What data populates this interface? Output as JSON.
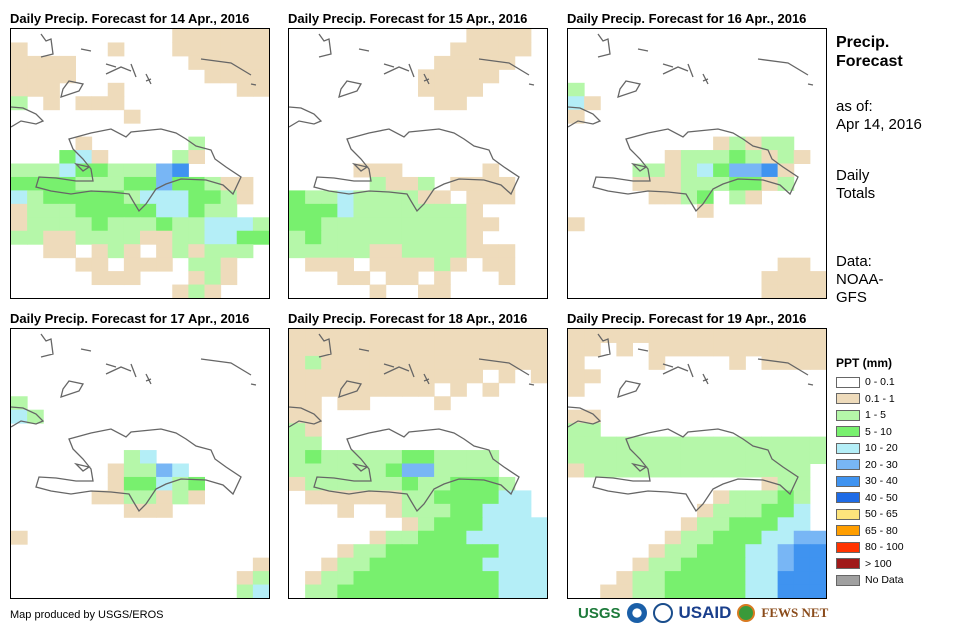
{
  "panels": [
    {
      "title": "Daily Precip. Forecast for 14 Apr., 2016",
      "grid": [
        "0000000000111111",
        "1000001000111111",
        "1111000000011111",
        "1111000000001111",
        "1110001000000011",
        "2010111000000000",
        "0000000100000000",
        "0000000000000000",
        "0000100000020000",
        "0003410000210000",
        "2224332225600000",
        "3333222335332110",
        "4233333244433210",
        "1222333334432200",
        "1222232223224442",
        "2211222211224433",
        "0011012101212220",
        "0000110111022100",
        "0000011100012100",
        "0000000000121000"
      ]
    },
    {
      "title": "Daily Precip. Forecast for 15 Apr., 2016",
      "grid": [
        "0000000000011110",
        "0000000000111110",
        "0000000001111100",
        "0000000011111000",
        "0000000011110000",
        "0000000001100000",
        "0000000000000000",
        "0000000000000000",
        "0000000000000000",
        "0000000000000000",
        "0000111000001000",
        "0000021120111100",
        "3224222211011100",
        "3334222222210000",
        "3322222222211000",
        "2322222222210000",
        "2222211222211100",
        "0111011112101100",
        "0001101101000100",
        "0000010011000000"
      ]
    },
    {
      "title": "Daily Precip. Forecast for 16 Apr., 2016",
      "grid": [
        "0000000000000000",
        "0000000000000000",
        "0000000000000000",
        "0000000000000000",
        "2000000000000000",
        "4100000000000000",
        "1000000000000000",
        "0000000000000000",
        "0000000001212200",
        "0000001222321210",
        "0000221243556100",
        "0000111222331200",
        "0000011230210000",
        "0000000010000000",
        "1000000000000000",
        "0000000000000000",
        "0000000000000000",
        "0000000000000110",
        "0000000000001111",
        "0000000000001111"
      ]
    },
    {
      "title": "Daily Precip. Forecast for 17 Apr., 2016",
      "grid": [
        "0000000000000000",
        "0000000000000000",
        "0000000000000000",
        "0000000000000000",
        "0000000000000000",
        "2000000000000000",
        "4200000000000000",
        "0000000000000000",
        "0000000000000000",
        "0000000240000000",
        "0000001225400000",
        "0000001334230000",
        "0000011221210000",
        "0000000111000000",
        "0000000000000000",
        "1000000000000000",
        "0000000000000000",
        "0000000000000001",
        "0000000000000012",
        "0000000000000024"
      ]
    },
    {
      "title": "Daily Precip. Forecast for 18 Apr., 2016",
      "grid": [
        "1111111111111111",
        "1111111111111111",
        "1211111111111111",
        "1111111111110101",
        "1111111110101000",
        "1101100001000000",
        "1100000000000000",
        "2100000000000000",
        "2200000000000000",
        "2322222332222000",
        "2222223552222000",
        "1222222322333200",
        "0111111223333440",
        "0001001222334440",
        "0000000123334444",
        "0000012233344444",
        "0001223333333444",
        "0012233333334444",
        "0122333333333444",
        "0223333333333444"
      ]
    },
    {
      "title": "Daily Precip. Forecast for 19 Apr., 2016",
      "grid": [
        "1111111111111111",
        "1101011111111111",
        "1000010000101111",
        "1100000000000000",
        "1000000000000000",
        "0000000000000000",
        "1100000000000000",
        "2200000000000000",
        "2222222222222222",
        "2222222222222222",
        "1222222222222220",
        "0000000000001220",
        "0000000001222320",
        "0000000012223340",
        "0000000122333440",
        "0000001223334455",
        "0000012233344566",
        "0000122333344566",
        "0001223333344666",
        "0011223333344666"
      ]
    }
  ],
  "side": {
    "title_line1": "Precip.",
    "title_line2": "Forecast",
    "as_of_label": "as of:",
    "as_of_date": "Apr 14, 2016",
    "totals_line1": "Daily",
    "totals_line2": "Totals",
    "data_label": "Data:",
    "data_line1": "NOAA-",
    "data_line2": "GFS"
  },
  "legend": {
    "title": "PPT (mm)",
    "items": [
      {
        "label": "0 - 0.1",
        "color": "#ffffff"
      },
      {
        "label": "0.1 - 1",
        "color": "#eedbbb"
      },
      {
        "label": "1 - 5",
        "color": "#b5f7a9"
      },
      {
        "label": "5 - 10",
        "color": "#78f06e"
      },
      {
        "label": "10 - 20",
        "color": "#b4eef7"
      },
      {
        "label": "20 - 30",
        "color": "#78b6f5"
      },
      {
        "label": "30 - 40",
        "color": "#3f93f0"
      },
      {
        "label": "40 - 50",
        "color": "#1e6be6"
      },
      {
        "label": "50 - 65",
        "color": "#fde47c"
      },
      {
        "label": "65 - 80",
        "color": "#ff9e00"
      },
      {
        "label": "80 - 100",
        "color": "#ff3300"
      },
      {
        "label": "> 100",
        "color": "#a01a1a"
      },
      {
        "label": "No Data",
        "color": "#a0a0a0"
      }
    ]
  },
  "credit": "Map produced by USGS/EROS",
  "logos": {
    "usgs": "USGS",
    "usaid": "USAID",
    "fewsnet": "FEWS NET"
  }
}
